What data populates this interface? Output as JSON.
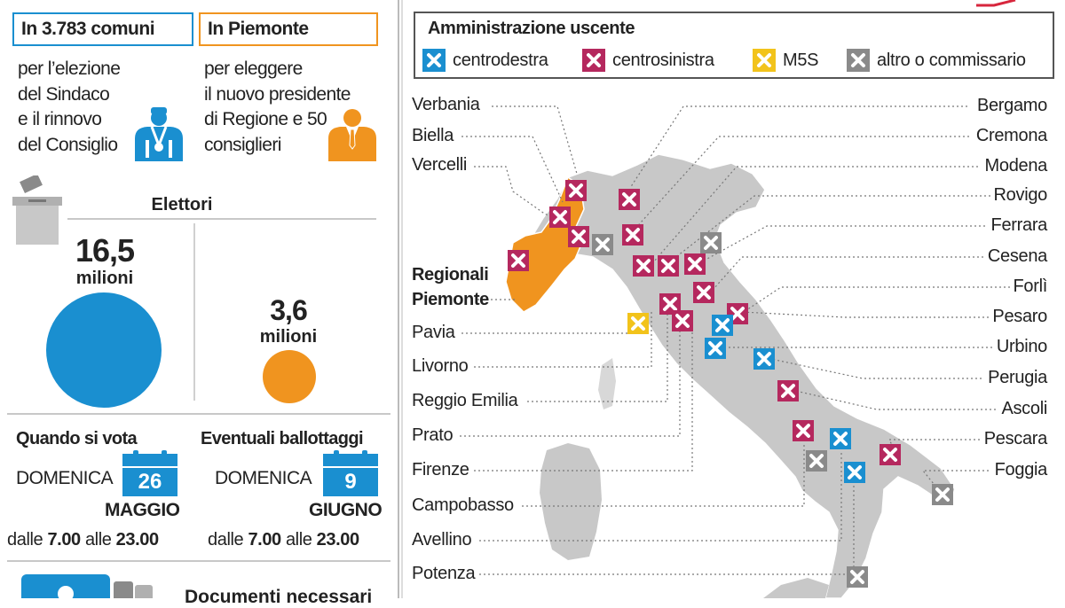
{
  "left": {
    "comuni_head": "In 3.783 comuni",
    "comuni_desc": [
      "per l’elezione",
      "del Sindaco",
      "e il rinnovo",
      "del Consiglio"
    ],
    "piemonte_head": "In Piemonte",
    "piemonte_desc": [
      "per eleggere",
      "il nuovo presidente",
      "di Regione e 50",
      "consiglieri"
    ],
    "elettori_title": "Elettori",
    "voters_total_num": "16,5",
    "voters_total_unit": "milioni",
    "voters_piemonte_num": "3,6",
    "voters_piemonte_unit": "milioni",
    "voters_total_value": 16.5,
    "voters_piemonte_value": 3.6,
    "quando_head": "Quando si vota",
    "quando_day": "DOMENICA",
    "quando_date": "26",
    "quando_month": "MAGGIO",
    "quando_hours_pre": "dalle",
    "quando_hours_from": "7.00",
    "quando_hours_mid": "alle",
    "quando_hours_to": "23.00",
    "ballot_head": "Eventuali ballottaggi",
    "ballot_day": "DOMENICA",
    "ballot_date": "9",
    "ballot_month": "GIUGNO",
    "ballot_hours_pre": "dalle",
    "ballot_hours_from": "7.00",
    "ballot_hours_mid": "alle",
    "ballot_hours_to": "23.00",
    "documenti_head": "Documenti necessari"
  },
  "legend": {
    "title": "Amministrazione uscente",
    "items": [
      {
        "label": "centrodestra",
        "color": "#1a8fd0"
      },
      {
        "label": "centrosinistra",
        "color": "#b5285e"
      },
      {
        "label": "M5S",
        "color": "#f2c31b"
      },
      {
        "label": "altro o commissario",
        "color": "#8a8a8a"
      }
    ]
  },
  "cities_left": [
    "Verbania",
    "Biella",
    "Vercelli",
    "Pavia",
    "Livorno",
    "Reggio Emilia",
    "Prato",
    "Firenze",
    "Campobasso",
    "Avellino",
    "Potenza"
  ],
  "region": {
    "line1": "Regionali",
    "line2": "Piemonte",
    "color": "#f0941f"
  },
  "cities_right": [
    "Bergamo",
    "Cremona",
    "Modena",
    "Rovigo",
    "Ferrara",
    "Cesena",
    "Forlì",
    "Pesaro",
    "Urbino",
    "Perugia",
    "Ascoli",
    "Pescara",
    "Foggia"
  ],
  "colors": {
    "blue": "#1a8fd0",
    "orange": "#f0941f",
    "magenta": "#b5285e",
    "yellow": "#f2c31b",
    "grey": "#8a8a8a",
    "land": "#c8c8c8"
  }
}
